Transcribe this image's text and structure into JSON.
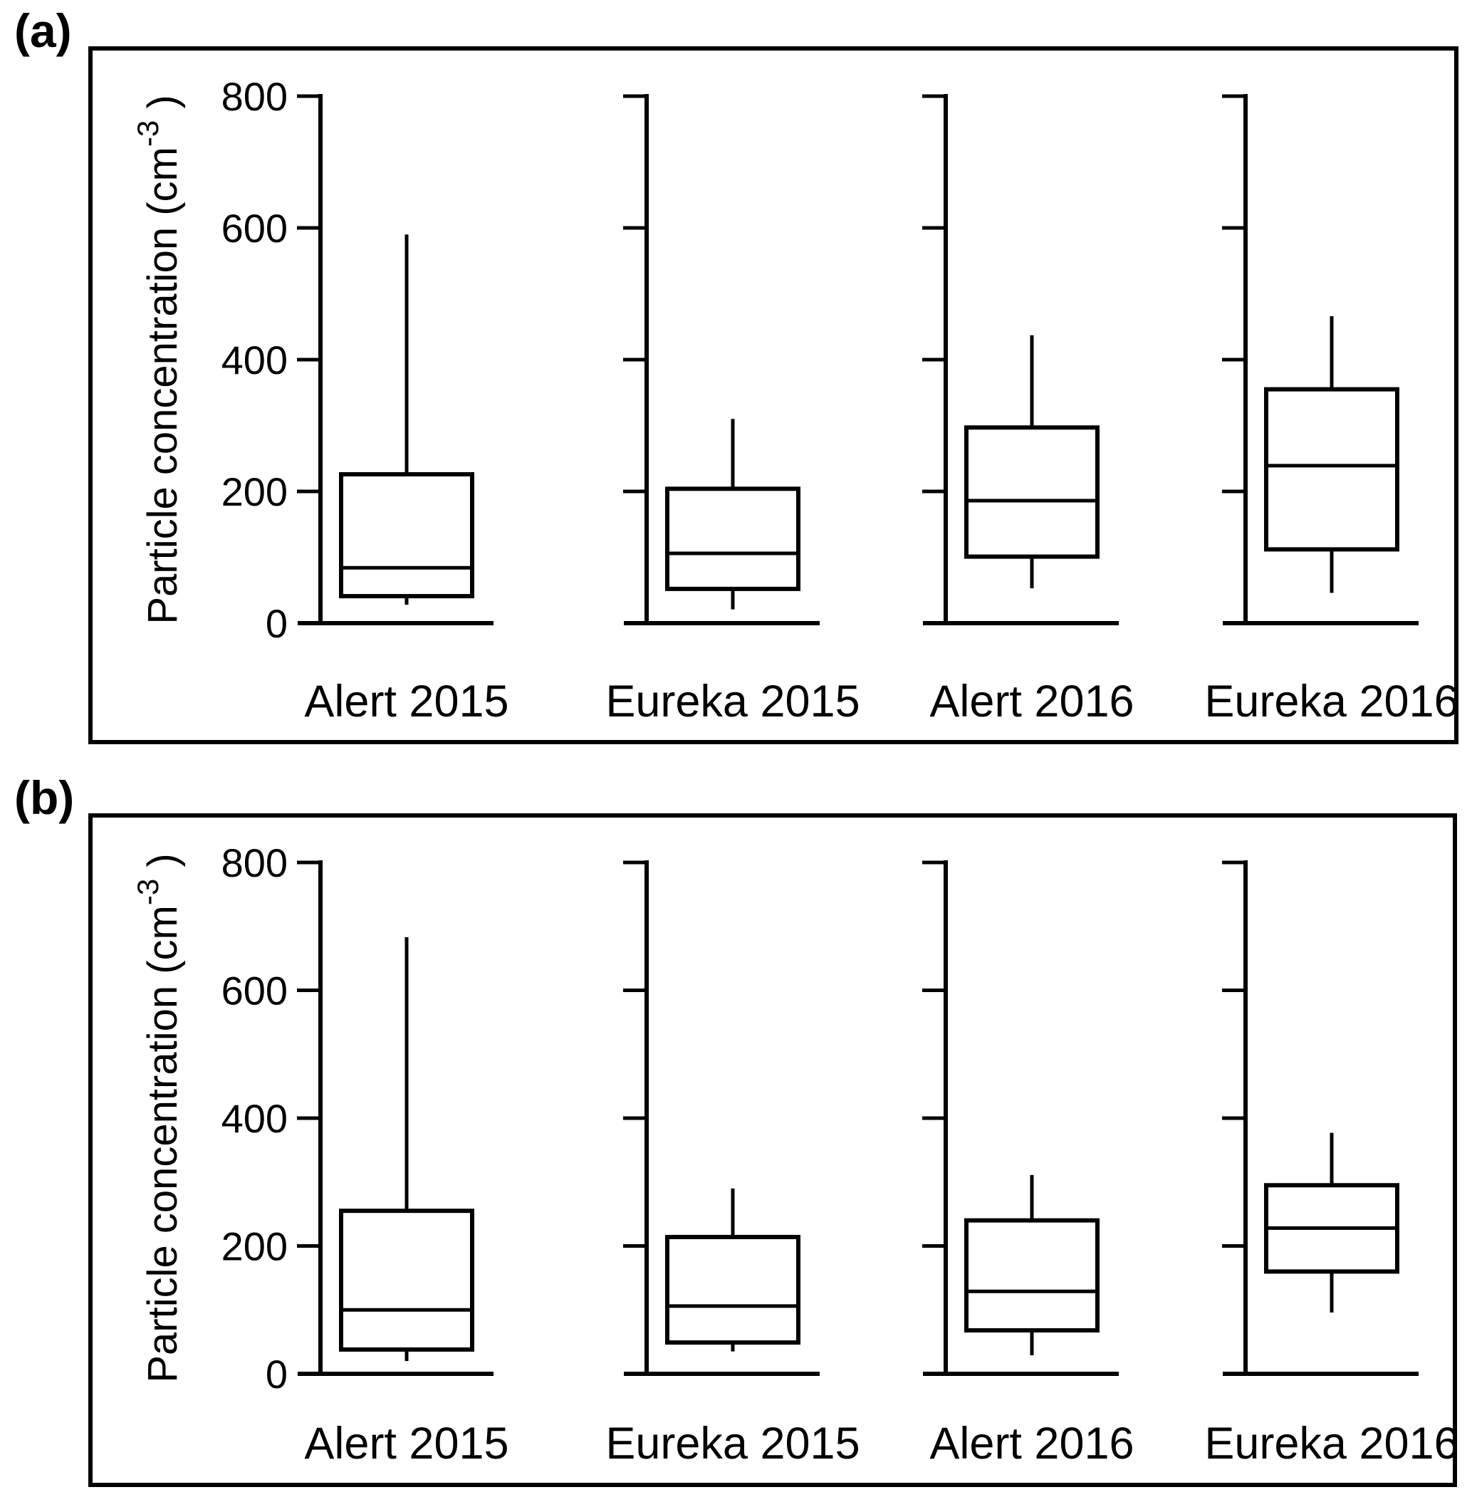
{
  "figure": {
    "panel_a_label": "(a)",
    "panel_b_label": "(b)",
    "ylabel_main": "Particle concentration (cm",
    "ylabel_sup": "-3",
    "ylabel_close": " )",
    "line_color": "#000000",
    "background_color": "#ffffff"
  },
  "chart_data": [
    {
      "type": "boxplot",
      "panel": "(a)",
      "title": "",
      "xlabel": "",
      "ylabel": "Particle concentration (cm-3)",
      "ylim": [
        0,
        800
      ],
      "yticks": [
        0,
        200,
        400,
        600,
        800
      ],
      "grid": false,
      "legend": "none",
      "categories": [
        "Alert 2015",
        "Eureka 2015",
        "Alert 2016",
        "Eureka 2016"
      ],
      "series": [
        {
          "name": "Alert 2015",
          "whisker_low": 28,
          "q1": 41,
          "median": 84,
          "q3": 226,
          "whisker_high": 590
        },
        {
          "name": "Eureka 2015",
          "whisker_low": 21,
          "q1": 52,
          "median": 106,
          "q3": 204,
          "whisker_high": 310
        },
        {
          "name": "Alert 2016",
          "whisker_low": 53,
          "q1": 101,
          "median": 186,
          "q3": 297,
          "whisker_high": 437
        },
        {
          "name": "Eureka 2016",
          "whisker_low": 46,
          "q1": 112,
          "median": 239,
          "q3": 355,
          "whisker_high": 466
        }
      ]
    },
    {
      "type": "boxplot",
      "panel": "(b)",
      "title": "",
      "xlabel": "",
      "ylabel": "Particle concentration (cm-3)",
      "ylim": [
        0,
        800
      ],
      "yticks": [
        0,
        200,
        400,
        600,
        800
      ],
      "grid": false,
      "legend": "none",
      "categories": [
        "Alert 2015",
        "Eureka 2015",
        "Alert 2016",
        "Eureka 2016"
      ],
      "series": [
        {
          "name": "Alert 2015",
          "whisker_low": 20,
          "q1": 38,
          "median": 100,
          "q3": 255,
          "whisker_high": 683
        },
        {
          "name": "Eureka 2015",
          "whisker_low": 35,
          "q1": 49,
          "median": 106,
          "q3": 214,
          "whisker_high": 290
        },
        {
          "name": "Alert 2016",
          "whisker_low": 29,
          "q1": 68,
          "median": 129,
          "q3": 240,
          "whisker_high": 311
        },
        {
          "name": "Eureka 2016",
          "whisker_low": 96,
          "q1": 160,
          "median": 228,
          "q3": 295,
          "whisker_high": 377
        }
      ]
    }
  ]
}
